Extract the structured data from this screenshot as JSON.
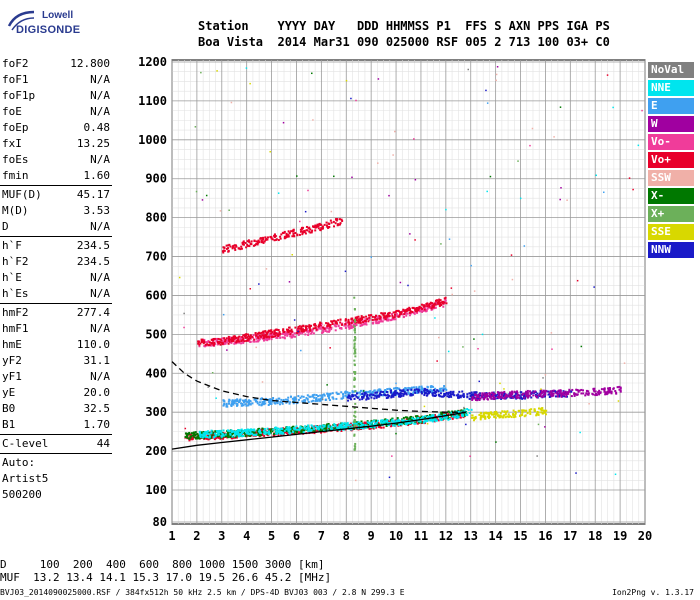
{
  "logo": {
    "line1": "Lowell",
    "line2": "DIGISONDE"
  },
  "header": {
    "labels": "Station    YYYY DAY   DDD HHMMSS P1  FFS S AXN PPS IGA PS",
    "values": "Boa Vista  2014 Mar31 090 025000 RSF 005 2 713 100 03+ C0"
  },
  "params": {
    "group1": [
      {
        "k": "foF2",
        "v": "12.800"
      },
      {
        "k": "foF1",
        "v": "N/A"
      },
      {
        "k": "foF1p",
        "v": "N/A"
      },
      {
        "k": "foE",
        "v": "N/A"
      },
      {
        "k": "foEp",
        "v": "0.48"
      },
      {
        "k": "fxI",
        "v": "13.25"
      },
      {
        "k": "foEs",
        "v": "N/A"
      },
      {
        "k": "fmin",
        "v": "1.60"
      }
    ],
    "group2": [
      {
        "k": "MUF(D)",
        "v": "45.17"
      },
      {
        "k": "M(D)",
        "v": "3.53"
      },
      {
        "k": "D",
        "v": "N/A"
      }
    ],
    "group3": [
      {
        "k": "h`F",
        "v": "234.5"
      },
      {
        "k": "h`F2",
        "v": "234.5"
      },
      {
        "k": "h`E",
        "v": "N/A"
      },
      {
        "k": "h`Es",
        "v": "N/A"
      }
    ],
    "group4": [
      {
        "k": "hmF2",
        "v": "277.4"
      },
      {
        "k": "hmF1",
        "v": "N/A"
      },
      {
        "k": "hmE",
        "v": "110.0"
      },
      {
        "k": "yF2",
        "v": "31.1"
      },
      {
        "k": "yF1",
        "v": "N/A"
      },
      {
        "k": "yE",
        "v": "20.0"
      },
      {
        "k": "B0",
        "v": "32.5"
      },
      {
        "k": "B1",
        "v": "1.70"
      }
    ],
    "group5": [
      {
        "k": "C-level",
        "v": "44"
      }
    ],
    "auto": [
      "Auto:",
      "Artist5",
      "500200"
    ]
  },
  "legend": [
    {
      "label": "NoVal",
      "color": "#808080"
    },
    {
      "label": "NNE",
      "color": "#00e5ee"
    },
    {
      "label": "E",
      "color": "#3fa0f0"
    },
    {
      "label": "W",
      "color": "#a000a0"
    },
    {
      "label": "Vo-",
      "color": "#f03c9a"
    },
    {
      "label": "Vo+",
      "color": "#e8002a"
    },
    {
      "label": "SSW",
      "color": "#f0b0a8"
    },
    {
      "label": "X-",
      "color": "#007800"
    },
    {
      "label": "X+",
      "color": "#6cb05a"
    },
    {
      "label": "SSE",
      "color": "#d8d800"
    },
    {
      "label": "NNW",
      "color": "#1a1ac8"
    }
  ],
  "bottom": {
    "line1": "D     100  200  400  600  800 1000 1500 3000 [km]",
    "line2": "MUF  13.2 13.4 14.1 15.3 17.0 19.5 26.6 45.2 [MHz]"
  },
  "footer": {
    "left": "BVJ03_2014090025000.RSF / 384fx512h 50 kHz 2.5 km / DPS-4D BVJ03 003 / 2.8 N 299.3 E",
    "right": "Ion2Png v. 1.3.17"
  },
  "chart_data": {
    "type": "scatter",
    "xlim": [
      1,
      20
    ],
    "ylim": [
      80,
      1200
    ],
    "x_ticks": [
      1,
      2,
      3,
      4,
      5,
      6,
      7,
      8,
      9,
      10,
      11,
      12,
      13,
      14,
      15,
      16,
      17,
      18,
      19,
      20
    ],
    "y_ticks": [
      80,
      100,
      200,
      300,
      400,
      500,
      600,
      700,
      800,
      900,
      1000,
      1100,
      1200
    ],
    "grid": true,
    "legend_position": "right",
    "traces": [
      {
        "name": "Vo+",
        "color": "#e8002a",
        "x": [
          1.5,
          2,
          3,
          4,
          5,
          6,
          7,
          8,
          9,
          10,
          11,
          12,
          12.8
        ],
        "y": [
          238,
          240,
          243,
          247,
          251,
          255,
          259,
          264,
          269,
          275,
          282,
          292,
          300
        ]
      },
      {
        "name": "X-",
        "color": "#007800",
        "x": [
          1.5,
          3,
          5,
          7,
          9,
          11,
          12.8
        ],
        "y": [
          242,
          246,
          254,
          262,
          272,
          285,
          303
        ]
      },
      {
        "name": "NNE",
        "color": "#00e5ee",
        "x": [
          2,
          4,
          6,
          8,
          10,
          12,
          13
        ],
        "y": [
          245,
          250,
          258,
          266,
          276,
          290,
          305
        ]
      },
      {
        "name": "E",
        "color": "#3fa0f0",
        "x": [
          3,
          4,
          5,
          6,
          7,
          8,
          9,
          10,
          11,
          12
        ],
        "y": [
          325,
          328,
          330,
          335,
          340,
          348,
          352,
          356,
          360,
          362
        ]
      },
      {
        "name": "NNW",
        "color": "#1a1ac8",
        "x": [
          8,
          9,
          10,
          11,
          12,
          13,
          14,
          15,
          16,
          17
        ],
        "y": [
          340,
          345,
          350,
          355,
          350,
          345,
          345,
          345,
          350,
          350
        ]
      },
      {
        "name": "W",
        "color": "#a000a0",
        "x": [
          13,
          14,
          15,
          16,
          17,
          18,
          19
        ],
        "y": [
          340,
          345,
          348,
          350,
          352,
          355,
          360
        ]
      },
      {
        "name": "Vo-",
        "color": "#f03c9a",
        "x": [
          2,
          4,
          6,
          8,
          10,
          12
        ],
        "y": [
          478,
          490,
          505,
          525,
          550,
          585
        ]
      },
      {
        "name": "Vo+ (2F)",
        "color": "#e8002a",
        "x": [
          2,
          3,
          4,
          5,
          6,
          7,
          8,
          9,
          10,
          11,
          12
        ],
        "y": [
          480,
          485,
          495,
          505,
          515,
          525,
          535,
          545,
          555,
          570,
          590
        ]
      },
      {
        "name": "Vo+ (3F)",
        "color": "#e8002a",
        "x": [
          3,
          4,
          5,
          6,
          7,
          7.8
        ],
        "y": [
          720,
          735,
          750,
          765,
          780,
          795
        ]
      },
      {
        "name": "SSE",
        "color": "#d8d800",
        "x": [
          13,
          14,
          15,
          16
        ],
        "y": [
          290,
          295,
          300,
          305
        ]
      },
      {
        "name": "X+",
        "color": "#6cb05a",
        "x": [
          8.3,
          8.3,
          8.3,
          8.3
        ],
        "y": [
          200,
          300,
          450,
          600
        ]
      }
    ],
    "profile_solid": {
      "x": [
        1,
        2,
        3,
        4,
        5,
        6,
        7,
        8,
        9,
        10,
        11,
        12,
        12.8
      ],
      "y": [
        205,
        215,
        222,
        229,
        236,
        243,
        250,
        257,
        264,
        272,
        281,
        291,
        300
      ]
    },
    "profile_dashed": {
      "x": [
        1,
        1.5,
        2,
        3,
        4,
        5,
        6,
        7,
        8,
        9,
        10,
        11,
        12,
        12.8
      ],
      "y": [
        430,
        400,
        380,
        355,
        340,
        330,
        325,
        320,
        315,
        310,
        305,
        302,
        300,
        300
      ]
    }
  }
}
